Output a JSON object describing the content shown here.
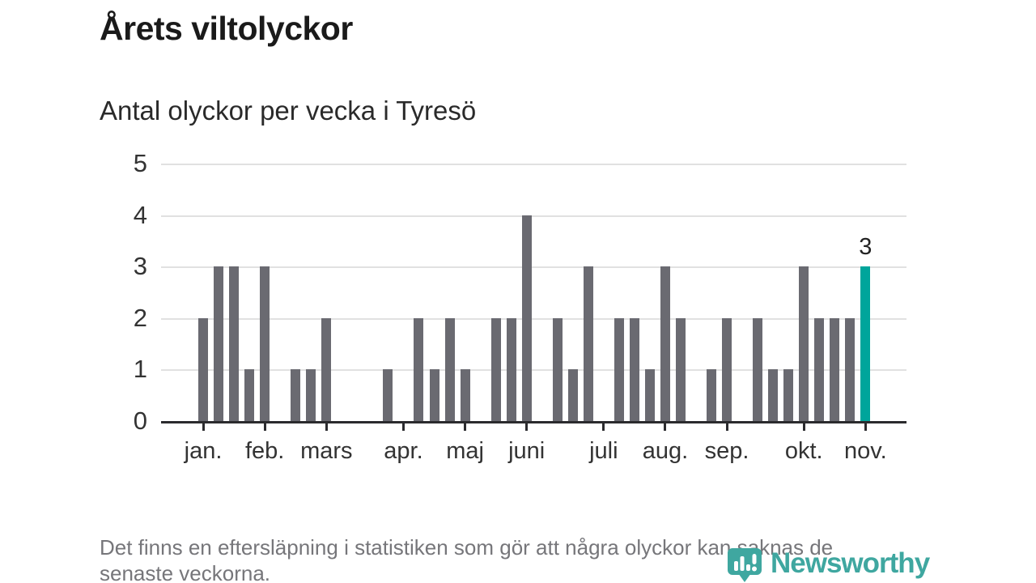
{
  "header": {
    "title": "Årets viltolyckor",
    "subtitle": "Antal olyckor per vecka i Tyresö"
  },
  "chart_data": {
    "type": "bar",
    "title": "Årets viltolyckor",
    "subtitle": "Antal olyckor per vecka i Tyresö",
    "x_unit": "vecka",
    "values": [
      0,
      0,
      2,
      3,
      3,
      1,
      3,
      0,
      1,
      1,
      2,
      0,
      0,
      0,
      1,
      0,
      2,
      1,
      2,
      1,
      0,
      2,
      2,
      4,
      0,
      2,
      1,
      3,
      0,
      2,
      2,
      1,
      3,
      2,
      0,
      1,
      2,
      0,
      2,
      1,
      1,
      3,
      2,
      2,
      2,
      3,
      0,
      0
    ],
    "highlight_index": 45,
    "highlight_value_label": "3",
    "x_ticks": [
      {
        "label": "jan.",
        "index": 2
      },
      {
        "label": "feb.",
        "index": 6
      },
      {
        "label": "mars",
        "index": 10
      },
      {
        "label": "apr.",
        "index": 15
      },
      {
        "label": "maj",
        "index": 19
      },
      {
        "label": "juni",
        "index": 23
      },
      {
        "label": "juli",
        "index": 28
      },
      {
        "label": "aug.",
        "index": 32
      },
      {
        "label": "sep.",
        "index": 36
      },
      {
        "label": "okt.",
        "index": 41
      },
      {
        "label": "nov.",
        "index": 45
      }
    ],
    "y_ticks": [
      0,
      1,
      2,
      3,
      4,
      5
    ],
    "ylim": [
      0,
      5
    ],
    "grid": true,
    "bar_color": "#6a6a71",
    "highlight_color": "#00a59b",
    "grid_color": "#e1e1e1",
    "axis_color": "#2b2b2e"
  },
  "footer": {
    "note_line1": "Det finns en eftersläpning i statistiken som gör att några olyckor kan saknas de",
    "note_line2": "senaste veckorna."
  },
  "logo": {
    "name": "Newsworthy",
    "color": "#3fa7a0"
  }
}
